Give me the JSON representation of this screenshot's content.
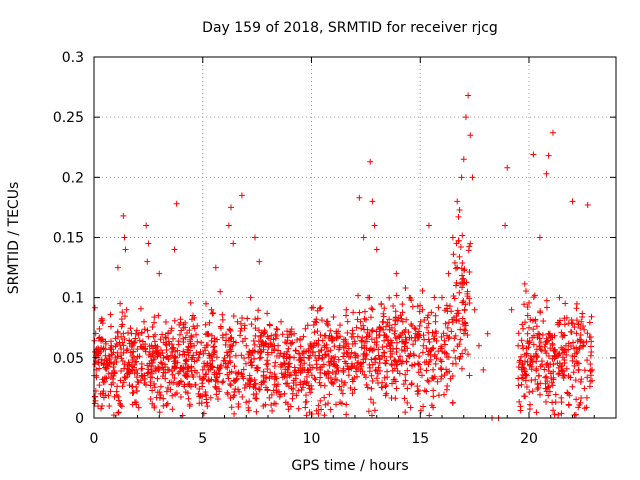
{
  "chart_data": {
    "type": "scatter",
    "title": "Day 159 of 2018, SRMTID for receiver rjcg",
    "xlabel": "GPS time / hours",
    "ylabel": "SRMTID / TECUs",
    "xlim": [
      0,
      24
    ],
    "ylim": [
      0,
      0.3
    ],
    "x_ticks": [
      0,
      5,
      10,
      15,
      20
    ],
    "x_tick_labels": [
      "0",
      "5",
      "10",
      "15",
      "20"
    ],
    "y_ticks": [
      0,
      0.05,
      0.1,
      0.15,
      0.2,
      0.25,
      0.3
    ],
    "y_tick_labels": [
      "0",
      "0.05",
      "0.1",
      "0.15",
      "0.2",
      "0.25",
      "0.3"
    ],
    "grid": true,
    "marker": "plus",
    "color": "#ff0000",
    "series": [
      {
        "name": "SRMTID",
        "points": [
          [
            0.1,
            0.04
          ],
          [
            0.2,
            0.055
          ],
          [
            0.3,
            0.02
          ],
          [
            0.4,
            0.065
          ],
          [
            0.5,
            0.03
          ],
          [
            0.6,
            0.045
          ],
          [
            0.7,
            0.01
          ],
          [
            0.8,
            0.06
          ],
          [
            0.9,
            0.035
          ],
          [
            1.0,
            0.05
          ],
          [
            1.1,
            0.125
          ],
          [
            1.2,
            0.095
          ],
          [
            1.3,
            0.088
          ],
          [
            1.35,
            0.168
          ],
          [
            1.4,
            0.15
          ],
          [
            1.45,
            0.14
          ],
          [
            1.5,
            0.09
          ],
          [
            1.6,
            0.04
          ],
          [
            1.8,
            0.055
          ],
          [
            2.0,
            0.03
          ],
          [
            2.2,
            0.045
          ],
          [
            2.3,
            0.08
          ],
          [
            2.4,
            0.16
          ],
          [
            2.45,
            0.13
          ],
          [
            2.5,
            0.145
          ],
          [
            2.6,
            0.03
          ],
          [
            2.8,
            0.05
          ],
          [
            3.0,
            0.12
          ],
          [
            3.2,
            0.04
          ],
          [
            3.4,
            0.025
          ],
          [
            3.6,
            0.055
          ],
          [
            3.7,
            0.14
          ],
          [
            3.8,
            0.178
          ],
          [
            4.0,
            0.03
          ],
          [
            4.2,
            0.045
          ],
          [
            4.4,
            0.01
          ],
          [
            4.6,
            0.06
          ],
          [
            4.8,
            0.02
          ],
          [
            5.0,
            0.04
          ],
          [
            5.2,
            0.07
          ],
          [
            5.4,
            0.09
          ],
          [
            5.6,
            0.125
          ],
          [
            5.8,
            0.105
          ],
          [
            6.0,
            0.05
          ],
          [
            6.2,
            0.16
          ],
          [
            6.3,
            0.175
          ],
          [
            6.4,
            0.145
          ],
          [
            6.6,
            0.08
          ],
          [
            6.8,
            0.185
          ],
          [
            7.0,
            0.06
          ],
          [
            7.2,
            0.1
          ],
          [
            7.4,
            0.15
          ],
          [
            7.6,
            0.13
          ],
          [
            7.8,
            0.07
          ],
          [
            8.0,
            0.045
          ],
          [
            8.3,
            0.06
          ],
          [
            8.6,
            0.08
          ],
          [
            8.9,
            0.04
          ],
          [
            9.2,
            0.07
          ],
          [
            9.5,
            0.05
          ],
          [
            9.8,
            0.03
          ],
          [
            10.1,
            0.06
          ],
          [
            10.4,
            0.04
          ],
          [
            10.7,
            0.08
          ],
          [
            11.0,
            0.05
          ],
          [
            11.3,
            0.06
          ],
          [
            11.6,
            0.09
          ],
          [
            11.9,
            0.07
          ],
          [
            12.2,
            0.183
          ],
          [
            12.4,
            0.15
          ],
          [
            12.6,
            0.1
          ],
          [
            12.7,
            0.213
          ],
          [
            12.8,
            0.18
          ],
          [
            12.9,
            0.16
          ],
          [
            13.0,
            0.14
          ],
          [
            13.3,
            0.08
          ],
          [
            13.6,
            0.06
          ],
          [
            13.9,
            0.12
          ],
          [
            14.2,
            0.08
          ],
          [
            14.5,
            0.1
          ],
          [
            14.8,
            0.07
          ],
          [
            15.1,
            0.09
          ],
          [
            15.4,
            0.16
          ],
          [
            15.7,
            0.08
          ],
          [
            16.0,
            0.1
          ],
          [
            16.3,
            0.12
          ],
          [
            16.5,
            0.15
          ],
          [
            16.7,
            0.18
          ],
          [
            16.9,
            0.2
          ],
          [
            17.0,
            0.215
          ],
          [
            17.1,
            0.25
          ],
          [
            17.2,
            0.268
          ],
          [
            17.3,
            0.235
          ],
          [
            17.4,
            0.2
          ],
          [
            17.5,
            0.09
          ],
          [
            17.7,
            0.06
          ],
          [
            17.9,
            0.04
          ],
          [
            18.1,
            0.07
          ],
          [
            18.3,
            0.0
          ],
          [
            18.6,
            0.0
          ],
          [
            18.9,
            0.16
          ],
          [
            19.0,
            0.208
          ],
          [
            19.2,
            0.09
          ],
          [
            19.5,
            0.06
          ],
          [
            19.8,
            0.04
          ],
          [
            20.0,
            0.075
          ],
          [
            20.2,
            0.219
          ],
          [
            20.5,
            0.15
          ],
          [
            20.8,
            0.203
          ],
          [
            20.9,
            0.218
          ],
          [
            21.1,
            0.237
          ],
          [
            21.4,
            0.1
          ],
          [
            21.7,
            0.06
          ],
          [
            22.0,
            0.18
          ],
          [
            22.4,
            0.08
          ],
          [
            22.7,
            0.177
          ],
          [
            22.9,
            0.04
          ]
        ],
        "dense_clusters": [
          {
            "x": [
              0,
              17.3
            ],
            "y_center": 0.045,
            "y_spread": 0.04
          },
          {
            "x": [
              19.5,
              22.9
            ],
            "y_center": 0.05,
            "y_spread": 0.045
          }
        ]
      }
    ]
  }
}
